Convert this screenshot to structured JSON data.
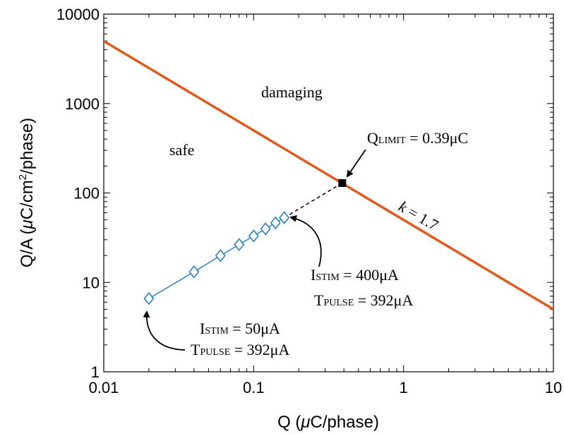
{
  "chart_data": {
    "type": "line",
    "x_scale": "log",
    "y_scale": "log",
    "xlim": [
      0.01,
      10
    ],
    "ylim": [
      1,
      10000
    ],
    "x_ticks": [
      0.01,
      0.1,
      1,
      10
    ],
    "x_tick_labels": [
      "0.01",
      "0.1",
      "1",
      "10"
    ],
    "y_ticks": [
      1,
      10,
      100,
      1000,
      10000
    ],
    "y_tick_labels": [
      "1",
      "10",
      "100",
      "1000",
      "10000"
    ],
    "xlabel_pre": "Q (",
    "xlabel_mu": "μ",
    "xlabel_post": "C/phase)",
    "ylabel_pre": "Q/A (",
    "ylabel_mu": "μ",
    "ylabel_mid": "C/cm",
    "ylabel_sup": "2",
    "ylabel_post": "/phase)",
    "grid": false,
    "colors": {
      "limit_line": "#e05a1e",
      "data": "#2a7fc0",
      "limit_point": "#000000",
      "extension": "#000000"
    },
    "series": [
      {
        "style": "limit-line",
        "x": [
          0.01,
          10
        ],
        "y": [
          5000,
          5
        ]
      },
      {
        "style": "diamond-markers",
        "x": [
          0.02,
          0.04,
          0.06,
          0.08,
          0.1,
          0.12,
          0.14,
          0.16
        ],
        "y": [
          6.6,
          13.1,
          19.9,
          26.5,
          33.1,
          39.7,
          46.3,
          52.9
        ]
      },
      {
        "style": "dashed-extension",
        "x": [
          0.16,
          0.39
        ],
        "y": [
          52.9,
          129
        ]
      }
    ],
    "limit_point": {
      "x": 0.39,
      "y": 129
    },
    "annotations": {
      "damaging": "damaging",
      "safe": "safe",
      "qlimit_main": "Q",
      "qlimit_sub": "LIMIT",
      "qlimit_value": " = 0.39μC",
      "k_italic": "k",
      "k_value": " = 1.7",
      "high_istim_main": "I",
      "high_istim_sub": "STIM",
      "high_istim_value": " = 400μA",
      "high_tpulse_main": "T",
      "high_tpulse_sub": "PULSE",
      "high_tpulse_value": " = 392μA",
      "low_istim_main": "I",
      "low_istim_sub": "STIM",
      "low_istim_value": " = 50μA",
      "low_tpulse_main": "T",
      "low_tpulse_sub": "PULSE",
      "low_tpulse_value": " = 392μA"
    }
  }
}
